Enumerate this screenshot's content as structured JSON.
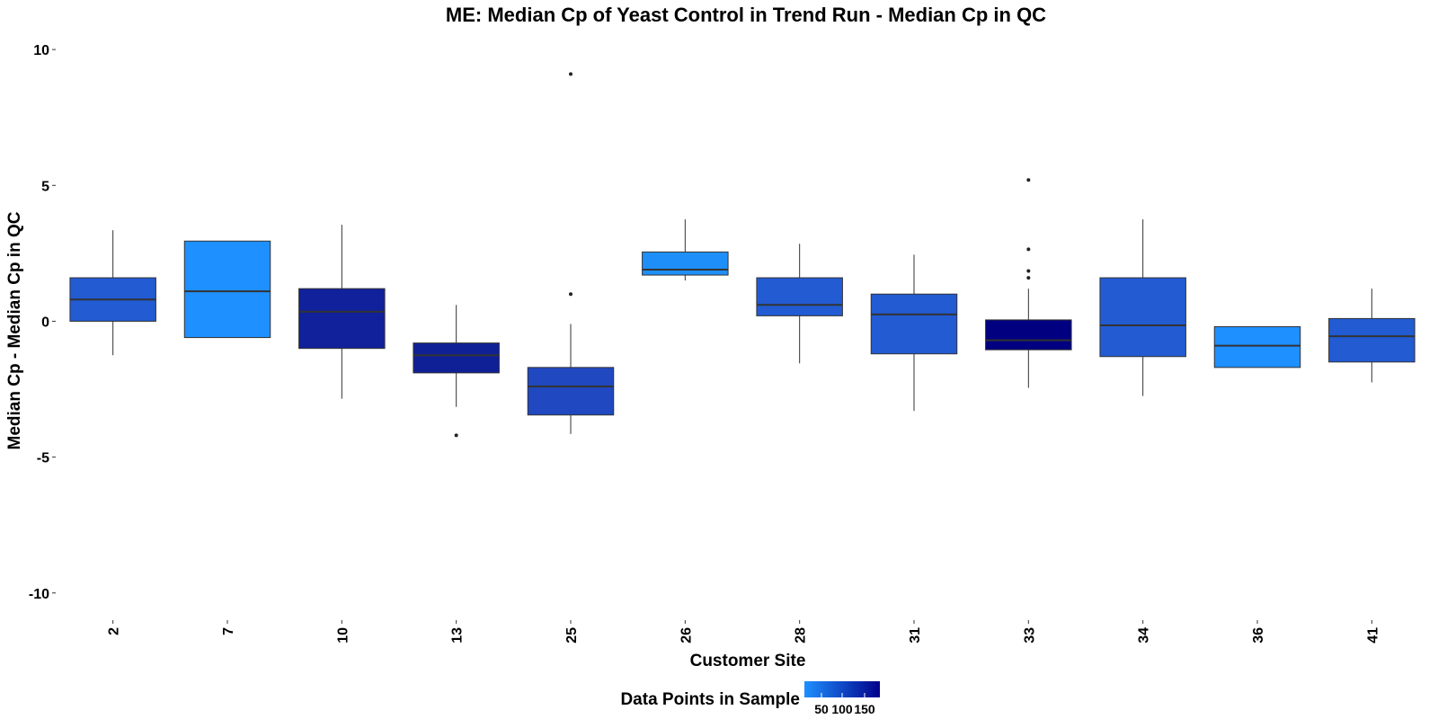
{
  "chart_data": {
    "type": "boxplot",
    "title": "ME: Median Cp of Yeast Control in Trend Run - Median Cp in QC",
    "xlabel": "Customer Site",
    "ylabel": "Median Cp - Median Cp in QC",
    "ylim": [
      -11,
      10.5
    ],
    "yticks": [
      -10,
      -5,
      0,
      5,
      10
    ],
    "grid": false,
    "legend": {
      "title": "Data Points in Sample",
      "placement": "bottom",
      "ticks": [
        "50",
        "100",
        "150"
      ],
      "color_low": "#1e90ff",
      "color_high": "#00008b"
    },
    "categories": [
      "2",
      "7",
      "10",
      "13",
      "25",
      "26",
      "28",
      "31",
      "33",
      "34",
      "36",
      "41"
    ],
    "boxes": [
      {
        "site": "2",
        "whisker_low": -1.25,
        "q1": 0.0,
        "median": 0.8,
        "q3": 1.6,
        "whisker_high": 3.35,
        "outliers": [],
        "color": "#225bd2"
      },
      {
        "site": "7",
        "whisker_low": -0.6,
        "q1": -0.6,
        "median": 1.1,
        "q3": 2.95,
        "whisker_high": 2.95,
        "outliers": [],
        "color": "#1e90ff"
      },
      {
        "site": "10",
        "whisker_low": -2.85,
        "q1": -1.0,
        "median": 0.35,
        "q3": 1.2,
        "whisker_high": 3.55,
        "outliers": [],
        "color": "#10219b"
      },
      {
        "site": "13",
        "whisker_low": -3.15,
        "q1": -1.9,
        "median": -1.25,
        "q3": -0.8,
        "whisker_high": 0.6,
        "outliers": [
          -4.2
        ],
        "color": "#0f1f96"
      },
      {
        "site": "25",
        "whisker_low": -4.15,
        "q1": -3.45,
        "median": -2.4,
        "q3": -1.7,
        "whisker_high": -0.1,
        "outliers": [
          1.0,
          9.1
        ],
        "color": "#2048c0"
      },
      {
        "site": "26",
        "whisker_low": 1.5,
        "q1": 1.7,
        "median": 1.9,
        "q3": 2.55,
        "whisker_high": 3.75,
        "outliers": [],
        "color": "#1e8ff9"
      },
      {
        "site": "28",
        "whisker_low": -1.55,
        "q1": 0.2,
        "median": 0.6,
        "q3": 1.6,
        "whisker_high": 2.85,
        "outliers": [],
        "color": "#225bd2"
      },
      {
        "site": "31",
        "whisker_low": -3.3,
        "q1": -1.2,
        "median": 0.25,
        "q3": 1.0,
        "whisker_high": 2.45,
        "outliers": [],
        "color": "#225bd2"
      },
      {
        "site": "33",
        "whisker_low": -2.45,
        "q1": -1.05,
        "median": -0.7,
        "q3": 0.05,
        "whisker_high": 1.2,
        "outliers": [
          1.6,
          1.85,
          2.65,
          5.2
        ],
        "color": "#000080"
      },
      {
        "site": "34",
        "whisker_low": -2.75,
        "q1": -1.3,
        "median": -0.15,
        "q3": 1.6,
        "whisker_high": 3.75,
        "outliers": [],
        "color": "#225bd2"
      },
      {
        "site": "36",
        "whisker_low": -1.7,
        "q1": -1.7,
        "median": -0.9,
        "q3": -0.2,
        "whisker_high": -0.2,
        "outliers": [],
        "color": "#1e90ff"
      },
      {
        "site": "41",
        "whisker_low": -2.25,
        "q1": -1.5,
        "median": -0.55,
        "q3": 0.1,
        "whisker_high": 1.2,
        "outliers": [],
        "color": "#225bd2"
      }
    ]
  }
}
